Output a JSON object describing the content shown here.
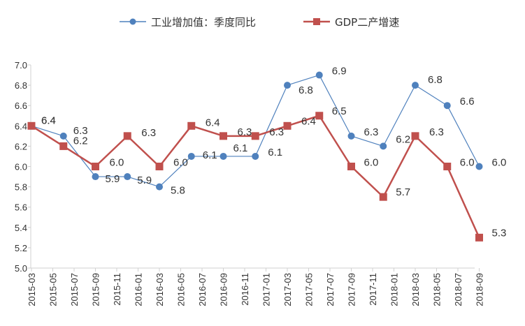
{
  "chart_data": {
    "type": "line",
    "title": "",
    "xlabel": "",
    "ylabel": "",
    "ylim": [
      5.0,
      7.0
    ],
    "y_ticks": [
      "5.0",
      "5.2",
      "5.4",
      "5.6",
      "5.8",
      "6.0",
      "6.2",
      "6.4",
      "6.6",
      "6.8",
      "7.0"
    ],
    "x_ticks": [
      "2015-03",
      "2015-05",
      "2015-07",
      "2015-09",
      "2015-11",
      "2016-01",
      "2016-03",
      "2016-05",
      "2016-07",
      "2016-09",
      "2016-11",
      "2017-01",
      "2017-03",
      "2017-05",
      "2017-07",
      "2017-09",
      "2017-11",
      "2018-01",
      "2018-03",
      "2018-05",
      "2018-07",
      "2018-09"
    ],
    "grid": false,
    "legend_position": "top",
    "series": [
      {
        "name": "工业增加值：季度同比",
        "color": "#4F81BD",
        "marker": "circle",
        "points": [
          {
            "x": "2015-03",
            "y": 6.4,
            "label": "6.4"
          },
          {
            "x": "2015-06",
            "y": 6.3,
            "label": "6.3"
          },
          {
            "x": "2015-09",
            "y": 5.9,
            "label": "5.9"
          },
          {
            "x": "2015-12",
            "y": 5.9,
            "label": "5.9"
          },
          {
            "x": "2016-03",
            "y": 5.8,
            "label": "5.8"
          },
          {
            "x": "2016-06",
            "y": 6.1,
            "label": "6.1"
          },
          {
            "x": "2016-09",
            "y": 6.1,
            "label": "6.1"
          },
          {
            "x": "2016-12",
            "y": 6.1,
            "label": "6.1"
          },
          {
            "x": "2017-03",
            "y": 6.8,
            "label": "6.8"
          },
          {
            "x": "2017-06",
            "y": 6.9,
            "label": "6.9"
          },
          {
            "x": "2017-09",
            "y": 6.3,
            "label": "6.3"
          },
          {
            "x": "2017-12",
            "y": 6.2,
            "label": "6.2"
          },
          {
            "x": "2018-03",
            "y": 6.8,
            "label": "6.8"
          },
          {
            "x": "2018-06",
            "y": 6.6,
            "label": "6.6"
          },
          {
            "x": "2018-09",
            "y": 6.0,
            "label": "6.0"
          }
        ]
      },
      {
        "name": "GDP二产增速",
        "color": "#C0504D",
        "marker": "square",
        "points": [
          {
            "x": "2015-03",
            "y": 6.4,
            "label": "6.4"
          },
          {
            "x": "2015-06",
            "y": 6.2,
            "label": "6.2"
          },
          {
            "x": "2015-09",
            "y": 6.0,
            "label": "6.0"
          },
          {
            "x": "2015-12",
            "y": 6.3,
            "label": "6.3"
          },
          {
            "x": "2016-03",
            "y": 6.0,
            "label": "6.0"
          },
          {
            "x": "2016-06",
            "y": 6.4,
            "label": "6.4"
          },
          {
            "x": "2016-09",
            "y": 6.3,
            "label": "6.3"
          },
          {
            "x": "2016-12",
            "y": 6.3,
            "label": "6.3"
          },
          {
            "x": "2017-03",
            "y": 6.4,
            "label": "6.4"
          },
          {
            "x": "2017-06",
            "y": 6.5,
            "label": "6.5"
          },
          {
            "x": "2017-09",
            "y": 6.0,
            "label": "6.0"
          },
          {
            "x": "2017-12",
            "y": 5.7,
            "label": "5.7"
          },
          {
            "x": "2018-03",
            "y": 6.3,
            "label": "6.3"
          },
          {
            "x": "2018-06",
            "y": 6.0,
            "label": "6.0"
          },
          {
            "x": "2018-09",
            "y": 5.3,
            "label": "5.3"
          }
        ]
      }
    ]
  }
}
